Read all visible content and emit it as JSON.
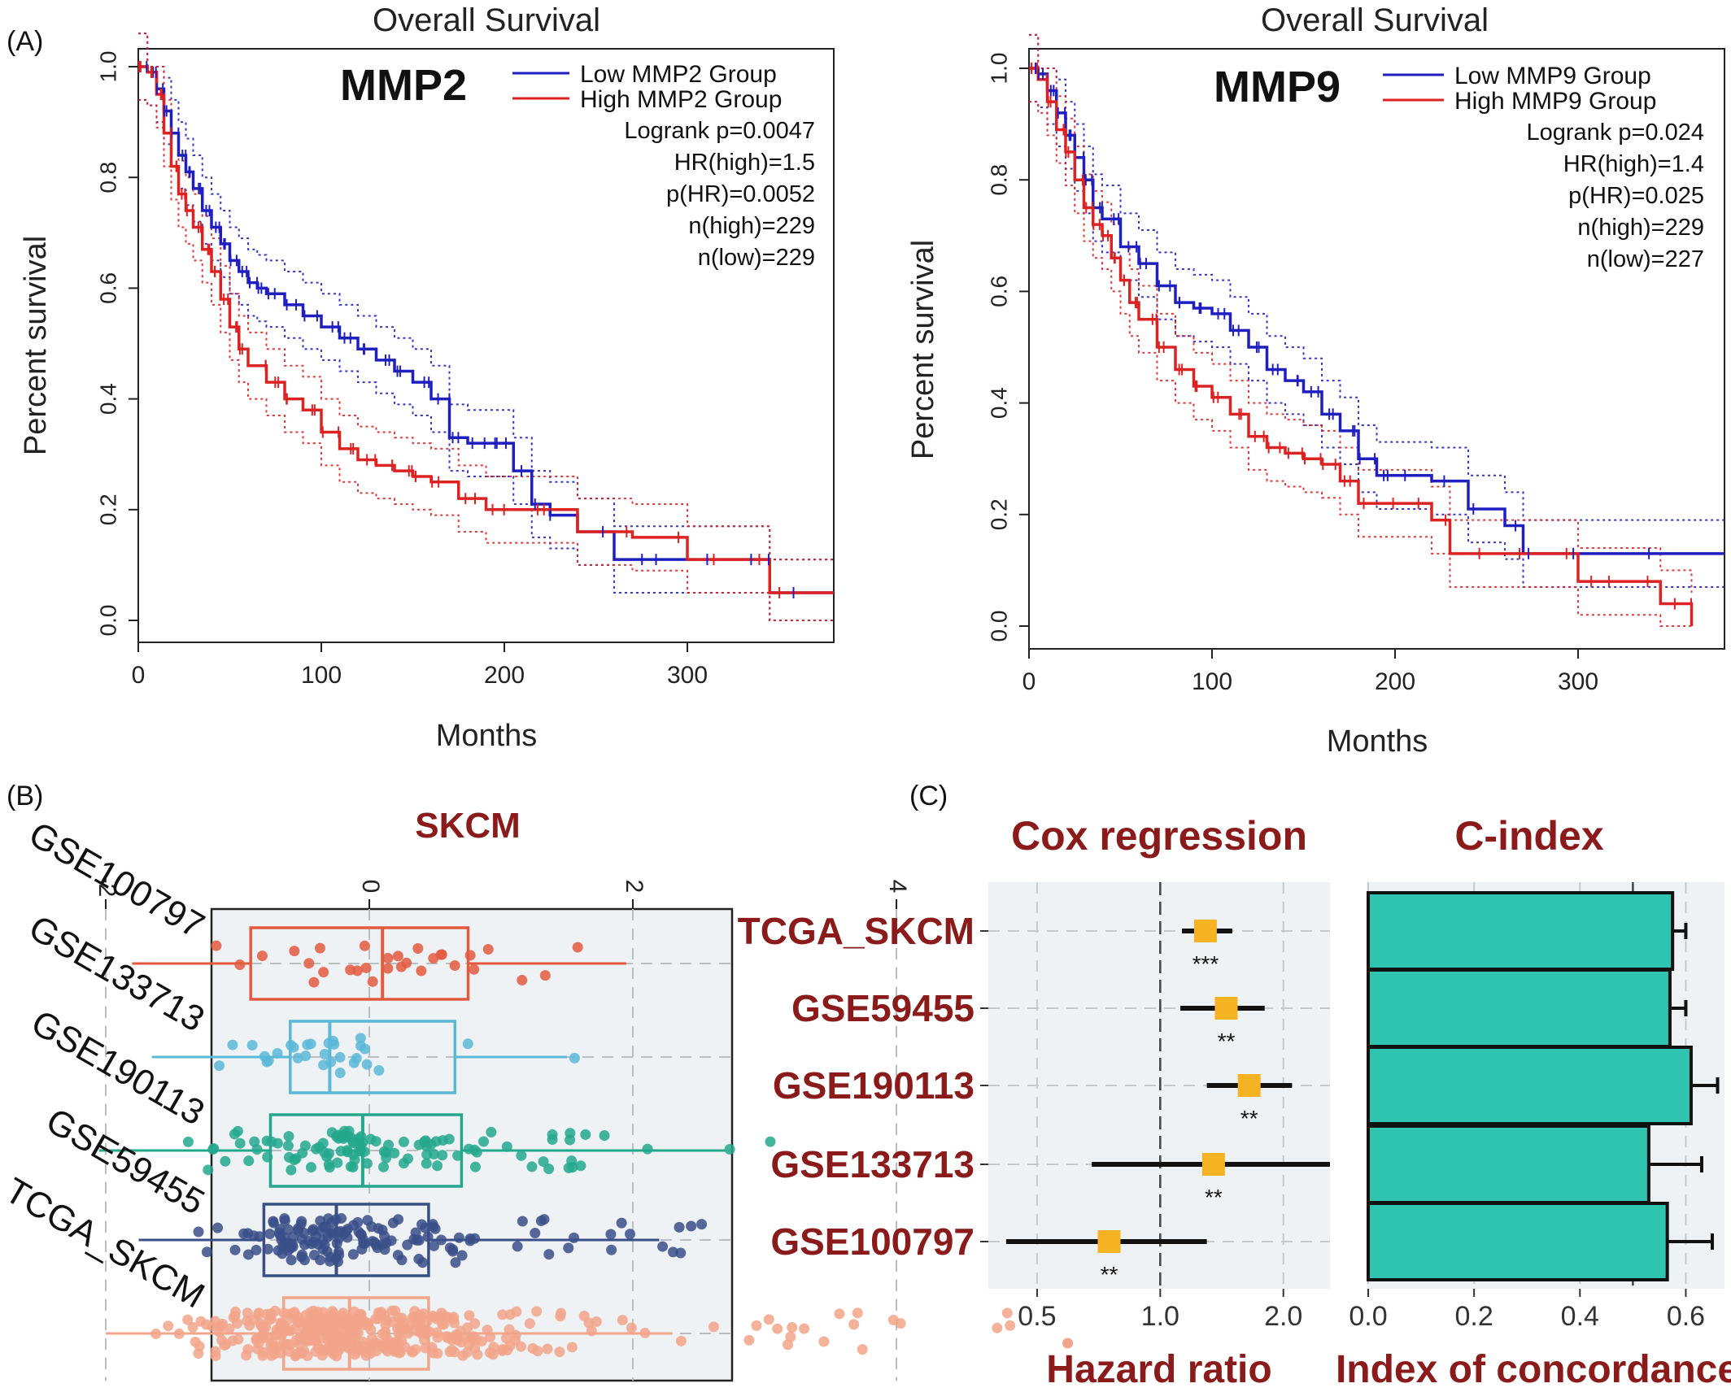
{
  "panel_labels": {
    "a": "(A)",
    "b": "(B)",
    "c": "(C)"
  },
  "colors": {
    "low": "#1f1fc0",
    "high": "#dd2222",
    "dark_red": "#8b1a1a",
    "teal": "#2ec4b0",
    "orange": "#f5b323",
    "panel_bg": "#eef2f4"
  },
  "chart_data": [
    {
      "type": "line",
      "subtype": "kaplan-meier",
      "panel": "A-left",
      "title": "Overall Survival",
      "gene_label": "MMP2",
      "xlabel": "Months",
      "ylabel": "Percent survival",
      "xlim": [
        0,
        380
      ],
      "ylim": [
        0,
        1
      ],
      "xticks": [
        "0",
        "100",
        "200",
        "300"
      ],
      "yticks": [
        "0.0",
        "0.2",
        "0.4",
        "0.6",
        "0.8",
        "1.0"
      ],
      "legend": [
        "Low MMP2 Group",
        "High MMP2 Group"
      ],
      "stats": [
        "Logrank p=0.0047",
        "HR(high)=1.5",
        "p(HR)=0.0052",
        "n(high)=229",
        "n(low)=229"
      ],
      "series": [
        {
          "name": "Low MMP2 Group",
          "color": "low",
          "x": [
            0,
            5,
            10,
            14,
            18,
            22,
            26,
            30,
            35,
            40,
            45,
            50,
            55,
            60,
            65,
            70,
            80,
            90,
            100,
            110,
            120,
            130,
            140,
            150,
            160,
            170,
            180,
            190,
            200,
            205,
            215,
            225,
            240,
            260,
            280,
            300,
            320,
            340,
            345,
            380
          ],
          "y": [
            1.0,
            0.99,
            0.96,
            0.92,
            0.88,
            0.84,
            0.81,
            0.78,
            0.74,
            0.71,
            0.68,
            0.65,
            0.63,
            0.61,
            0.6,
            0.59,
            0.57,
            0.55,
            0.53,
            0.51,
            0.49,
            0.47,
            0.45,
            0.43,
            0.4,
            0.33,
            0.32,
            0.32,
            0.32,
            0.27,
            0.21,
            0.19,
            0.16,
            0.11,
            0.11,
            0.11,
            0.11,
            0.11,
            0.05,
            0.05
          ]
        },
        {
          "name": "High MMP2 Group",
          "color": "high",
          "x": [
            0,
            5,
            10,
            14,
            18,
            22,
            26,
            30,
            35,
            40,
            45,
            50,
            55,
            60,
            70,
            80,
            90,
            100,
            110,
            120,
            130,
            140,
            150,
            160,
            175,
            190,
            200,
            220,
            240,
            270,
            300,
            320,
            345,
            380
          ],
          "y": [
            1.0,
            0.99,
            0.95,
            0.88,
            0.82,
            0.77,
            0.74,
            0.71,
            0.67,
            0.63,
            0.58,
            0.53,
            0.49,
            0.46,
            0.43,
            0.4,
            0.38,
            0.34,
            0.31,
            0.29,
            0.28,
            0.27,
            0.26,
            0.25,
            0.22,
            0.2,
            0.2,
            0.2,
            0.16,
            0.15,
            0.11,
            0.11,
            0.05,
            0.05
          ]
        }
      ]
    },
    {
      "type": "line",
      "subtype": "kaplan-meier",
      "panel": "A-right",
      "title": "Overall Survival",
      "gene_label": "MMP9",
      "xlabel": "Months",
      "ylabel": "Percent survival",
      "xlim": [
        0,
        380
      ],
      "ylim": [
        0,
        1
      ],
      "xticks": [
        "0",
        "100",
        "200",
        "300"
      ],
      "yticks": [
        "0.0",
        "0.2",
        "0.4",
        "0.6",
        "0.8",
        "1.0"
      ],
      "legend": [
        "Low MMP9 Group",
        "High MMP9 Group"
      ],
      "stats": [
        "Logrank p=0.024",
        "HR(high)=1.4",
        "p(HR)=0.025",
        "n(high)=229",
        "n(low)=227"
      ],
      "series": [
        {
          "name": "Low MMP9 Group",
          "color": "low",
          "x": [
            0,
            5,
            10,
            15,
            20,
            25,
            30,
            35,
            40,
            50,
            60,
            70,
            80,
            90,
            100,
            110,
            120,
            130,
            140,
            150,
            160,
            170,
            180,
            190,
            200,
            220,
            240,
            260,
            270,
            290,
            300,
            380
          ],
          "y": [
            1.0,
            0.99,
            0.96,
            0.92,
            0.88,
            0.84,
            0.8,
            0.75,
            0.73,
            0.68,
            0.65,
            0.61,
            0.58,
            0.57,
            0.56,
            0.53,
            0.5,
            0.46,
            0.44,
            0.42,
            0.38,
            0.35,
            0.3,
            0.27,
            0.27,
            0.26,
            0.21,
            0.18,
            0.13,
            0.13,
            0.13,
            0.13
          ]
        },
        {
          "name": "High MMP9 Group",
          "color": "high",
          "x": [
            0,
            5,
            10,
            15,
            20,
            25,
            30,
            35,
            40,
            45,
            50,
            55,
            60,
            70,
            80,
            90,
            100,
            110,
            120,
            130,
            140,
            150,
            160,
            170,
            180,
            200,
            220,
            230,
            250,
            270,
            300,
            310,
            330,
            345,
            355,
            362
          ],
          "y": [
            1.0,
            0.98,
            0.94,
            0.89,
            0.85,
            0.8,
            0.75,
            0.72,
            0.7,
            0.66,
            0.62,
            0.58,
            0.55,
            0.5,
            0.46,
            0.43,
            0.41,
            0.38,
            0.34,
            0.32,
            0.31,
            0.3,
            0.29,
            0.26,
            0.22,
            0.22,
            0.19,
            0.13,
            0.13,
            0.13,
            0.08,
            0.08,
            0.08,
            0.04,
            0.04,
            0.0
          ]
        }
      ]
    },
    {
      "type": "box",
      "panel": "B",
      "title": "SKCM",
      "xlim": [
        -2.2,
        5.5
      ],
      "xticks": [
        "-2",
        "0",
        "2",
        "4"
      ],
      "categories": [
        "GSE100797",
        "GSE133713",
        "GSE190113",
        "GSE59455",
        "TCGA_SKCM"
      ],
      "colors": [
        "#e35a3f",
        "#5ab8d8",
        "#23a88c",
        "#3a4f88",
        "#f2a58a"
      ],
      "series": [
        {
          "name": "GSE100797",
          "q1": -0.9,
          "median": 0.1,
          "q3": 0.75,
          "whisker_low": -1.8,
          "whisker_high": 1.95,
          "n": 30
        },
        {
          "name": "GSE133713",
          "q1": -0.6,
          "median": -0.3,
          "q3": 0.65,
          "whisker_low": -1.65,
          "whisker_high": 1.5,
          "n": 30
        },
        {
          "name": "GSE190113",
          "q1": -0.75,
          "median": -0.05,
          "q3": 0.7,
          "whisker_low": -2.05,
          "whisker_high": 2.7,
          "n": 110
        },
        {
          "name": "GSE59455",
          "q1": -0.8,
          "median": -0.25,
          "q3": 0.45,
          "whisker_low": -1.75,
          "whisker_high": 2.2,
          "n": 150
        },
        {
          "name": "TCGA_SKCM",
          "q1": -0.65,
          "median": -0.15,
          "q3": 0.45,
          "whisker_low": -2.0,
          "whisker_high": 2.3,
          "n": 400
        }
      ]
    },
    {
      "type": "scatter",
      "subtype": "forest",
      "panel": "C-left",
      "title": "Cox regression",
      "xlabel": "Hazard ratio",
      "xscale": "log",
      "xlim": [
        0.38,
        2.6
      ],
      "xticks": [
        0.5,
        1.0,
        2.0
      ],
      "xtick_labels": [
        "0.5",
        "1.0",
        "2.0"
      ],
      "ref_line": 1.0,
      "categories": [
        "TCGA_SKCM",
        "GSE59455",
        "GSE190113",
        "GSE133713",
        "GSE100797"
      ],
      "hr": [
        1.29,
        1.45,
        1.65,
        1.35,
        0.75
      ],
      "ci_low": [
        1.13,
        1.12,
        1.3,
        0.68,
        0.42
      ],
      "ci_high": [
        1.5,
        1.8,
        2.1,
        2.6,
        1.3
      ],
      "significance": [
        "***",
        "**",
        "**",
        "**",
        "**"
      ]
    },
    {
      "type": "bar",
      "orientation": "horizontal",
      "panel": "C-right",
      "title": "C-index",
      "xlabel": "Index of concordance",
      "xlim": [
        0,
        0.67
      ],
      "xticks": [
        "0.0",
        "0.2",
        "0.4",
        "0.6"
      ],
      "ref_line": 0.5,
      "categories": [
        "TCGA_SKCM",
        "GSE59455",
        "GSE190113",
        "GSE133713",
        "GSE100797"
      ],
      "values": [
        0.575,
        0.57,
        0.61,
        0.53,
        0.565
      ],
      "err_high": [
        0.6,
        0.6,
        0.66,
        0.63,
        0.65
      ]
    }
  ]
}
